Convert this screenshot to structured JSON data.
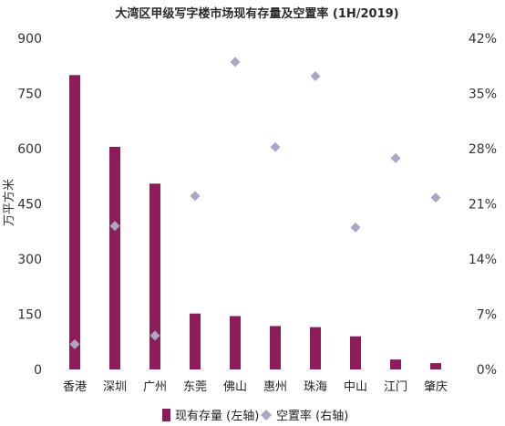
{
  "chart_data": {
    "type": "bar",
    "title": "大湾区甲级写字楼市场现有存量及空置率 (1H/2019)",
    "ylabel": "万平方米",
    "categories": [
      "香港",
      "深圳",
      "广州",
      "东莞",
      "佛山",
      "惠州",
      "珠海",
      "中山",
      "江门",
      "肇庆"
    ],
    "ylim": [
      0,
      900
    ],
    "y2lim": [
      0,
      42
    ],
    "y_ticks": [
      "0",
      "150",
      "300",
      "450",
      "600",
      "750",
      "900"
    ],
    "y2_ticks": [
      "0%",
      "7%",
      "14%",
      "21%",
      "28%",
      "35%",
      "42%"
    ],
    "grid": false,
    "legend_position": "bottom",
    "colors": {
      "bar": "#8b1e5a",
      "diamond": "#a9a8c4"
    },
    "series": [
      {
        "name": "现有存量 (左轴)",
        "axis": "left",
        "type": "bar",
        "values": [
          800,
          605,
          505,
          152,
          145,
          118,
          115,
          90,
          27,
          17
        ]
      },
      {
        "name": "空置率 (右轴)",
        "axis": "right",
        "type": "scatter",
        "values": [
          3.2,
          18.2,
          4.3,
          22.0,
          39.0,
          28.2,
          37.2,
          18.0,
          26.8,
          21.8
        ]
      }
    ]
  }
}
